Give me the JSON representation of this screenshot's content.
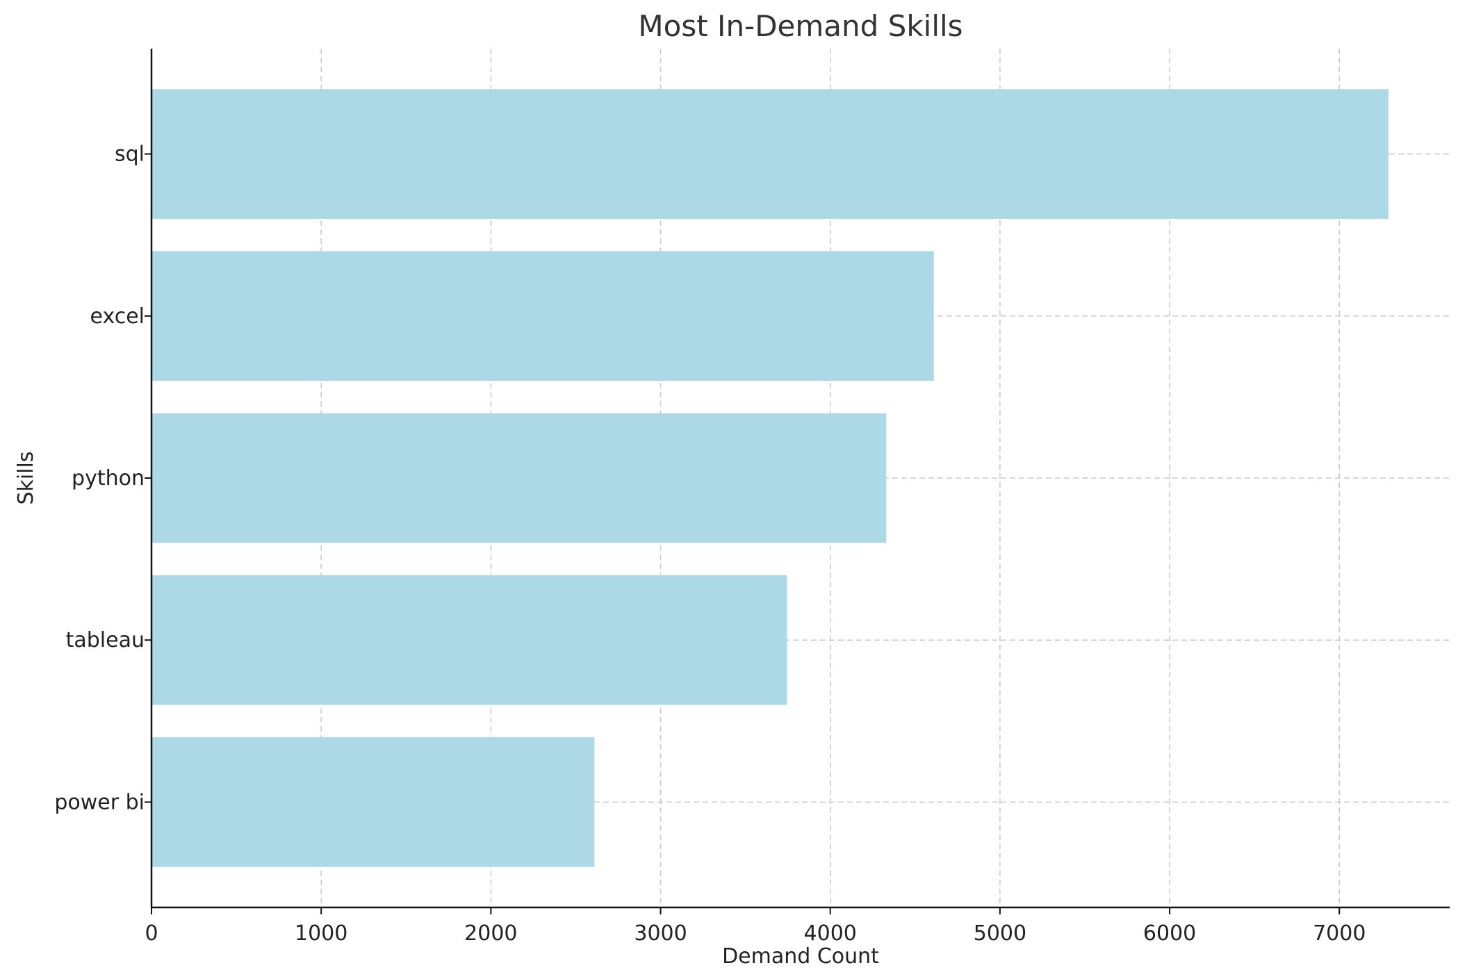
{
  "chart_data": {
    "type": "bar",
    "orientation": "horizontal",
    "title": "Most In-Demand Skills",
    "xlabel": "Demand Count",
    "ylabel": "Skills",
    "categories": [
      "sql",
      "excel",
      "python",
      "tableau",
      "power bi"
    ],
    "values": [
      7290,
      4610,
      4330,
      3745,
      2610
    ],
    "xlim": [
      0,
      7650
    ],
    "xticks": [
      0,
      1000,
      2000,
      3000,
      4000,
      5000,
      6000,
      7000
    ],
    "xtick_labels": [
      "0",
      "1000",
      "2000",
      "3000",
      "4000",
      "5000",
      "6000",
      "7000"
    ],
    "grid": true,
    "bar_color": "#add8e6",
    "grid_color": "#c8c8c8"
  }
}
